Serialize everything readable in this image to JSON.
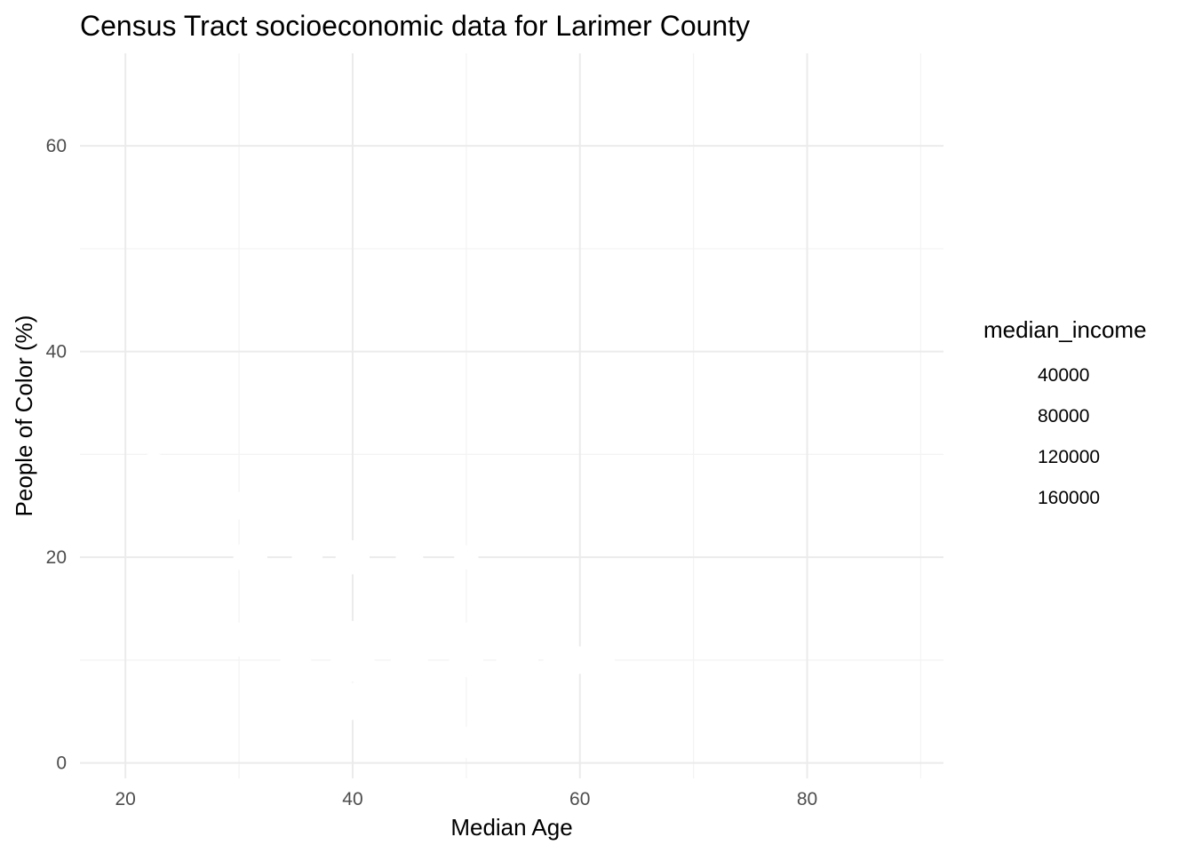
{
  "chart_data": {
    "type": "scatter",
    "title": "Census Tract socioeconomic data for Larimer County",
    "xlabel": "Median Age",
    "ylabel": "People of Color (%)",
    "xlim": [
      16,
      92
    ],
    "ylim": [
      -1.5,
      69
    ],
    "x_ticks": [
      20,
      40,
      60,
      80
    ],
    "y_ticks": [
      0,
      20,
      40,
      60
    ],
    "x_tick_labels": [
      "20",
      "40",
      "60",
      "80"
    ],
    "y_tick_labels": [
      "0",
      "20",
      "40",
      "60"
    ],
    "grid": true,
    "legend": {
      "title": "median_income",
      "position": "right",
      "entries": [
        "40000",
        "80000",
        "120000",
        "160000"
      ]
    },
    "point_color": "#ffffff",
    "series": [
      {
        "x": [
          22.5,
          30,
          31,
          36,
          40,
          40,
          42,
          45,
          50,
          50,
          54,
          58,
          62,
          30,
          35,
          40,
          45,
          50,
          55,
          60,
          40,
          50
        ],
        "y": [
          29,
          25,
          20,
          20,
          20,
          12,
          14,
          20,
          20,
          12,
          10,
          10,
          10,
          12,
          10,
          10,
          10,
          10,
          10,
          10,
          6,
          2
        ],
        "size": [
          60000,
          70000,
          90000,
          80000,
          90000,
          100000,
          80000,
          70000,
          60000,
          90000,
          80000,
          70000,
          60000,
          90000,
          80000,
          120000,
          100000,
          90000,
          80000,
          70000,
          100000,
          80000
        ]
      }
    ]
  }
}
